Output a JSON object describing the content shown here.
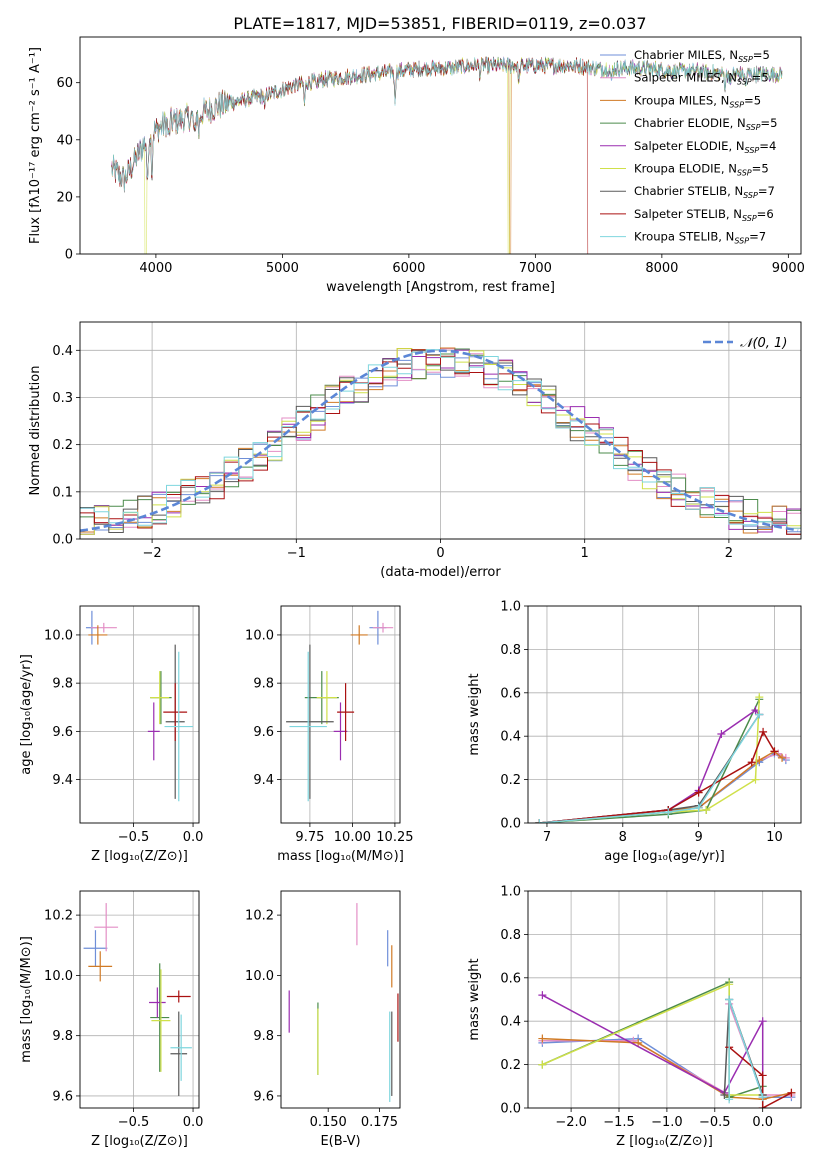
{
  "figure_title": "PLATE=1817, MJD=53851, FIBERID=0119, z=0.037",
  "colors": [
    "#6f8fd8",
    "#e38ec5",
    "#d07a25",
    "#4b8b4b",
    "#9a2db0",
    "#cfe04a",
    "#5a5a5a",
    "#aa1111",
    "#7fd6de"
  ],
  "chart_data": [
    {
      "id": "spectrum",
      "type": "line",
      "xlabel": "wavelength [Angstrom, rest frame]",
      "ylabel": "Flux [fλ10⁻¹⁷ erg cm⁻² s⁻¹ A⁻¹]",
      "xlim": [
        3400,
        9100
      ],
      "ylim": [
        0,
        76
      ],
      "xticks": [
        "4000",
        "5000",
        "6000",
        "7000",
        "8000",
        "9000"
      ],
      "yticks": [
        "0",
        "20",
        "40",
        "60"
      ],
      "grid": false,
      "legend_position": "top-right",
      "legend": [
        "Chabrier MILES, N_SSP=5",
        "Salpeter MILES, N_SSP=5",
        "Kroupa MILES, N_SSP=5",
        "Chabrier ELODIE, N_SSP=5",
        "Salpeter ELODIE, N_SSP=4",
        "Kroupa ELODIE, N_SSP=5",
        "Chabrier STELIB, N_SSP=7",
        "Salpeter STELIB, N_SSP=6",
        "Kroupa STELIB, N_SSP=7"
      ],
      "continuum": [
        [
          3650,
          30
        ],
        [
          3750,
          26
        ],
        [
          3850,
          34
        ],
        [
          3950,
          42
        ],
        [
          4100,
          46
        ],
        [
          4300,
          48
        ],
        [
          4500,
          52
        ],
        [
          4700,
          54
        ],
        [
          4900,
          56
        ],
        [
          5100,
          59
        ],
        [
          5300,
          61
        ],
        [
          5500,
          62
        ],
        [
          5700,
          63
        ],
        [
          5900,
          64
        ],
        [
          6100,
          65
        ],
        [
          6300,
          65
        ],
        [
          6500,
          66
        ],
        [
          6700,
          66
        ],
        [
          6900,
          66
        ],
        [
          7100,
          66
        ],
        [
          7300,
          66
        ],
        [
          7500,
          65
        ],
        [
          7700,
          65
        ],
        [
          7900,
          65
        ],
        [
          8100,
          64
        ],
        [
          8300,
          64
        ],
        [
          8500,
          63
        ],
        [
          8700,
          63
        ],
        [
          8900,
          63
        ]
      ],
      "absorption_lines": [
        [
          3934,
          18
        ],
        [
          3969,
          14
        ],
        [
          4102,
          6
        ],
        [
          4305,
          8
        ],
        [
          4340,
          6
        ],
        [
          4861,
          5
        ],
        [
          5175,
          7
        ],
        [
          5270,
          4
        ],
        [
          5890,
          10
        ],
        [
          6563,
          3
        ],
        [
          6870,
          6
        ],
        [
          7600,
          5
        ],
        [
          8500,
          4
        ],
        [
          8542,
          5
        ],
        [
          8662,
          4
        ]
      ],
      "series_cutoff": [
        {
          "series": 5,
          "x": 3920
        },
        {
          "series": 5,
          "x": 6790
        },
        {
          "series": 2,
          "x": 6800
        },
        {
          "series": 7,
          "x": 7420
        }
      ]
    },
    {
      "id": "residuals",
      "type": "histogram",
      "xlabel": "(data-model)/error",
      "ylabel": "Normed distribution",
      "xlim": [
        -2.5,
        2.5
      ],
      "ylim": [
        0,
        0.46
      ],
      "xticks": [
        "−2",
        "−1",
        "0",
        "1",
        "2"
      ],
      "yticks": [
        "0.0",
        "0.1",
        "0.2",
        "0.3",
        "0.4"
      ],
      "grid": true,
      "legend_position": "top-right",
      "legend": [
        "𝒩(0, 1)"
      ],
      "bin_width": 0.1,
      "reference": "normal pdf, mean 0, sd 1"
    },
    {
      "id": "age-z",
      "type": "errorbar",
      "xlabel": "Z [log₁₀(Z/Z⊙)]",
      "ylabel": "age  [log₁₀(age/yr)]",
      "xlim": [
        -0.95,
        0.05
      ],
      "ylim": [
        9.22,
        10.12
      ],
      "xticks": [
        "−0.5",
        "0.0"
      ],
      "yticks": [
        "9.4",
        "9.6",
        "9.8",
        "10.0"
      ],
      "grid": true,
      "points": [
        {
          "x": -0.85,
          "xerr": 0.05,
          "y": 10.03,
          "yerr": 0.07,
          "c": 0
        },
        {
          "x": -0.75,
          "xerr": 0.11,
          "y": 10.03,
          "yerr": 0.02,
          "c": 1
        },
        {
          "x": -0.8,
          "xerr": 0.08,
          "y": 10.0,
          "yerr": 0.04,
          "c": 2
        },
        {
          "x": -0.27,
          "xerr": 0.09,
          "y": 9.74,
          "yerr": 0.11,
          "c": 3
        },
        {
          "x": -0.33,
          "xerr": 0.05,
          "y": 9.6,
          "yerr": 0.12,
          "c": 4
        },
        {
          "x": -0.28,
          "xerr": 0.08,
          "y": 9.74,
          "yerr": 0.11,
          "c": 5
        },
        {
          "x": -0.15,
          "xerr": 0.08,
          "y": 9.64,
          "yerr": 0.32,
          "c": 6
        },
        {
          "x": -0.15,
          "xerr": 0.1,
          "y": 9.68,
          "yerr": 0.12,
          "c": 7
        },
        {
          "x": -0.12,
          "xerr": 0.12,
          "y": 9.62,
          "yerr": 0.31,
          "c": 8
        }
      ]
    },
    {
      "id": "age-mass",
      "type": "errorbar",
      "xlabel": "mass [log₁₀(M/M⊙)]",
      "ylabel": "",
      "xlim": [
        9.58,
        10.28
      ],
      "ylim": [
        9.22,
        10.12
      ],
      "xticks": [
        "9.75",
        "10.00",
        "10.25"
      ],
      "yticks": [
        "9.4",
        "9.6",
        "9.8",
        "10.0"
      ],
      "grid": true,
      "points": [
        {
          "x": 10.15,
          "xerr": 0.05,
          "y": 10.03,
          "yerr": 0.07,
          "c": 0
        },
        {
          "x": 10.18,
          "xerr": 0.06,
          "y": 10.03,
          "yerr": 0.02,
          "c": 1
        },
        {
          "x": 10.04,
          "xerr": 0.05,
          "y": 10.0,
          "yerr": 0.04,
          "c": 2
        },
        {
          "x": 9.82,
          "xerr": 0.1,
          "y": 9.74,
          "yerr": 0.11,
          "c": 3
        },
        {
          "x": 9.93,
          "xerr": 0.04,
          "y": 9.6,
          "yerr": 0.12,
          "c": 4
        },
        {
          "x": 9.85,
          "xerr": 0.06,
          "y": 9.74,
          "yerr": 0.11,
          "c": 5
        },
        {
          "x": 9.75,
          "xerr": 0.14,
          "y": 9.64,
          "yerr": 0.32,
          "c": 6
        },
        {
          "x": 9.96,
          "xerr": 0.05,
          "y": 9.68,
          "yerr": 0.12,
          "c": 7
        },
        {
          "x": 9.74,
          "xerr": 0.11,
          "y": 9.62,
          "yerr": 0.31,
          "c": 8
        }
      ]
    },
    {
      "id": "weight-age",
      "type": "line",
      "xlabel": "age  [log₁₀(age/yr)]",
      "ylabel": "mass weight",
      "xlim": [
        6.75,
        10.35
      ],
      "ylim": [
        0,
        1
      ],
      "xticks": [
        "7",
        "8",
        "9",
        "10"
      ],
      "yticks": [
        "0.0",
        "0.2",
        "0.4",
        "0.6",
        "0.8",
        "1.0"
      ],
      "grid": true,
      "series": [
        {
          "c": 0,
          "pts": [
            [
              6.9,
              0
            ],
            [
              8.6,
              0.05
            ],
            [
              9.0,
              0.07
            ],
            [
              9.8,
              0.28
            ],
            [
              10.0,
              0.32
            ],
            [
              10.15,
              0.29
            ]
          ]
        },
        {
          "c": 1,
          "pts": [
            [
              6.9,
              0
            ],
            [
              8.6,
              0.06
            ],
            [
              9.0,
              0.07
            ],
            [
              9.8,
              0.29
            ],
            [
              10.05,
              0.32
            ],
            [
              10.15,
              0.3
            ]
          ]
        },
        {
          "c": 2,
          "pts": [
            [
              6.9,
              0
            ],
            [
              8.6,
              0.06
            ],
            [
              9.0,
              0.07
            ],
            [
              9.8,
              0.29
            ],
            [
              10.0,
              0.33
            ],
            [
              10.1,
              0.3
            ]
          ]
        },
        {
          "c": 3,
          "pts": [
            [
              6.9,
              0
            ],
            [
              8.6,
              0.04
            ],
            [
              9.1,
              0.06
            ],
            [
              9.8,
              0.57
            ]
          ]
        },
        {
          "c": 4,
          "pts": [
            [
              6.9,
              0
            ],
            [
              8.6,
              0.06
            ],
            [
              9.0,
              0.15
            ],
            [
              9.3,
              0.41
            ],
            [
              9.75,
              0.52
            ],
            [
              9.8,
              0.5
            ]
          ]
        },
        {
          "c": 5,
          "pts": [
            [
              6.9,
              0
            ],
            [
              8.6,
              0.05
            ],
            [
              9.1,
              0.06
            ],
            [
              9.75,
              0.2
            ],
            [
              9.8,
              0.58
            ]
          ]
        },
        {
          "c": 6,
          "pts": [
            [
              6.9,
              0
            ],
            [
              8.6,
              0.06
            ],
            [
              9.0,
              0.08
            ],
            [
              9.8,
              0.5
            ]
          ]
        },
        {
          "c": 7,
          "pts": [
            [
              6.9,
              0
            ],
            [
              8.6,
              0.06
            ],
            [
              9.0,
              0.14
            ],
            [
              9.7,
              0.28
            ],
            [
              9.85,
              0.42
            ],
            [
              10.0,
              0.33
            ]
          ]
        },
        {
          "c": 8,
          "pts": [
            [
              6.9,
              0
            ],
            [
              8.6,
              0.05
            ],
            [
              9.0,
              0.07
            ],
            [
              9.8,
              0.5
            ]
          ]
        }
      ]
    },
    {
      "id": "mass-z",
      "type": "errorbar",
      "xlabel": "Z [log₁₀(Z/Z⊙)]",
      "ylabel": "mass [log₁₀(M/M⊙)]",
      "xlim": [
        -0.95,
        0.05
      ],
      "ylim": [
        9.56,
        10.28
      ],
      "xticks": [
        "−0.5",
        "0.0"
      ],
      "yticks": [
        "9.6",
        "9.8",
        "10.0",
        "10.2"
      ],
      "grid": true,
      "points": [
        {
          "x": -0.82,
          "xerr": 0.1,
          "y": 10.09,
          "yerr": 0.06,
          "c": 0
        },
        {
          "x": -0.73,
          "xerr": 0.1,
          "y": 10.16,
          "yerr": 0.08,
          "c": 1
        },
        {
          "x": -0.78,
          "xerr": 0.1,
          "y": 10.03,
          "yerr": 0.05,
          "c": 2
        },
        {
          "x": -0.28,
          "xerr": 0.08,
          "y": 9.86,
          "yerr": 0.18,
          "c": 3
        },
        {
          "x": -0.3,
          "xerr": 0.07,
          "y": 9.91,
          "yerr": 0.05,
          "c": 4
        },
        {
          "x": -0.27,
          "xerr": 0.08,
          "y": 9.85,
          "yerr": 0.17,
          "c": 5
        },
        {
          "x": -0.12,
          "xerr": 0.07,
          "y": 9.74,
          "yerr": 0.14,
          "c": 6
        },
        {
          "x": -0.12,
          "xerr": 0.1,
          "y": 9.93,
          "yerr": 0.02,
          "c": 7
        },
        {
          "x": -0.1,
          "xerr": 0.09,
          "y": 9.76,
          "yerr": 0.11,
          "c": 8
        }
      ]
    },
    {
      "id": "mass-ebv",
      "type": "errorbar",
      "xlabel": "E(B-V)",
      "ylabel": "",
      "xlim": [
        0.127,
        0.185
      ],
      "ylim": [
        9.56,
        10.28
      ],
      "xticks": [
        "0.150",
        "0.175"
      ],
      "yticks": [
        "9.6",
        "9.8",
        "10.0",
        "10.2"
      ],
      "grid": false,
      "points": [
        {
          "x": 0.179,
          "xerr": 0,
          "y": 10.09,
          "yerr": 0.06,
          "c": 0
        },
        {
          "x": 0.164,
          "xerr": 0,
          "y": 10.17,
          "yerr": 0.07,
          "c": 1
        },
        {
          "x": 0.181,
          "xerr": 0,
          "y": 10.03,
          "yerr": 0.07,
          "c": 2
        },
        {
          "x": 0.145,
          "xerr": 0,
          "y": 9.79,
          "yerr": 0.12,
          "c": 3
        },
        {
          "x": 0.131,
          "xerr": 0,
          "y": 9.88,
          "yerr": 0.07,
          "c": 4
        },
        {
          "x": 0.145,
          "xerr": 0,
          "y": 9.78,
          "yerr": 0.11,
          "c": 5
        },
        {
          "x": 0.181,
          "xerr": 0,
          "y": 9.74,
          "yerr": 0.14,
          "c": 6
        },
        {
          "x": 0.184,
          "xerr": 0,
          "y": 9.86,
          "yerr": 0.08,
          "c": 7
        },
        {
          "x": 0.18,
          "xerr": 0,
          "y": 9.73,
          "yerr": 0.15,
          "c": 8
        }
      ]
    },
    {
      "id": "weight-z",
      "type": "line",
      "xlabel": "Z [log₁₀(Z/Z⊙)]",
      "ylabel": "mass weight",
      "xlim": [
        -2.45,
        0.4
      ],
      "ylim": [
        0,
        1
      ],
      "xticks": [
        "−2.0",
        "−1.5",
        "−1.0",
        "−0.5",
        "0.0"
      ],
      "yticks": [
        "0.0",
        "0.2",
        "0.4",
        "0.6",
        "0.8",
        "1.0"
      ],
      "grid": true,
      "series": [
        {
          "c": 0,
          "pts": [
            [
              -2.3,
              0.3
            ],
            [
              -1.3,
              0.32
            ],
            [
              -0.35,
              0.05
            ],
            [
              -0.35,
              0.5
            ],
            [
              0.0,
              0.05
            ],
            [
              0.3,
              0.05
            ]
          ]
        },
        {
          "c": 1,
          "pts": [
            [
              -2.3,
              0.31
            ],
            [
              -1.35,
              0.31
            ],
            [
              -0.35,
              0.06
            ],
            [
              -0.35,
              0.48
            ],
            [
              0.0,
              0.06
            ],
            [
              0.3,
              0.06
            ]
          ]
        },
        {
          "c": 2,
          "pts": [
            [
              -2.3,
              0.32
            ],
            [
              -1.3,
              0.3
            ],
            [
              -0.35,
              0.05
            ],
            [
              0.0,
              0.04
            ],
            [
              0.3,
              0.07
            ]
          ]
        },
        {
          "c": 3,
          "pts": [
            [
              -2.3,
              0.2
            ],
            [
              -0.35,
              0.58
            ],
            [
              -0.35,
              0.05
            ],
            [
              0.0,
              0.1
            ]
          ]
        },
        {
          "c": 4,
          "pts": [
            [
              -2.3,
              0.52
            ],
            [
              -0.4,
              0.07
            ],
            [
              0.0,
              0.4
            ],
            [
              0.0,
              0.06
            ]
          ]
        },
        {
          "c": 5,
          "pts": [
            [
              -2.3,
              0.2
            ],
            [
              -0.35,
              0.57
            ],
            [
              -0.35,
              0.06
            ],
            [
              0.0,
              0.06
            ]
          ]
        },
        {
          "c": 6,
          "pts": [
            [
              -0.4,
              0.06
            ],
            [
              -0.35,
              0.5
            ],
            [
              0.0,
              0.06
            ]
          ]
        },
        {
          "c": 7,
          "pts": [
            [
              -0.35,
              0.28
            ],
            [
              0.0,
              0.15
            ],
            [
              0.0,
              0.0
            ],
            [
              0.3,
              0.07
            ]
          ]
        },
        {
          "c": 8,
          "pts": [
            [
              -0.35,
              0.04
            ],
            [
              -0.35,
              0.5
            ],
            [
              0.0,
              0.05
            ]
          ]
        }
      ]
    }
  ]
}
